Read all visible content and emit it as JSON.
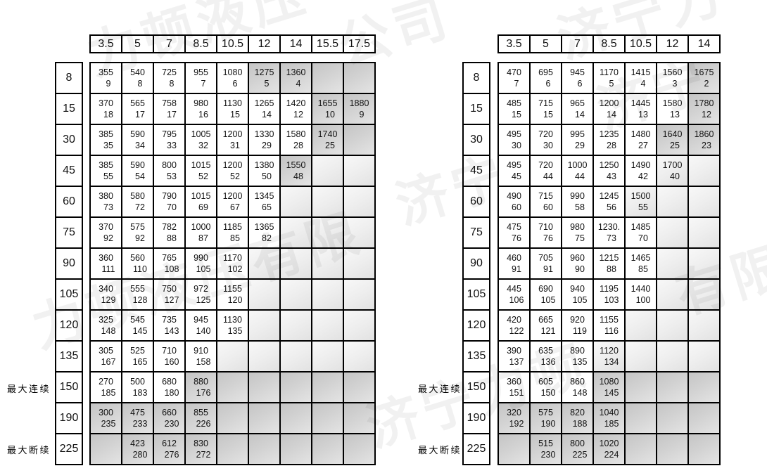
{
  "labels": {
    "max_continuous": "最大连续",
    "max_intermittent": "最大断续"
  },
  "watermark": {
    "text": "济宁力顿液压有限公司",
    "fragments": [
      "力顿液压",
      "公司",
      "济宁力",
      "力顿液压有限",
      "济宁力顿",
      "有限",
      "济宁",
      "济宁"
    ]
  },
  "left_table": {
    "columns": [
      "3.5",
      "5",
      "7",
      "8.5",
      "10.5",
      "12",
      "14",
      "15.5",
      "17.5"
    ],
    "rows": [
      {
        "h": "8",
        "c": [
          {
            "a": "355",
            "b": "9"
          },
          {
            "a": "540",
            "b": "8"
          },
          {
            "a": "725",
            "b": "8"
          },
          {
            "a": "955",
            "b": "7"
          },
          {
            "a": "1080",
            "b": "6"
          },
          {
            "a": "1275",
            "b": "5",
            "s": "d"
          },
          {
            "a": "1360",
            "b": "4",
            "s": "d"
          },
          {
            "s": "d"
          },
          {
            "s": "d"
          }
        ]
      },
      {
        "h": "15",
        "c": [
          {
            "a": "370",
            "b": "18"
          },
          {
            "a": "565",
            "b": "17"
          },
          {
            "a": "758",
            "b": "17"
          },
          {
            "a": "980",
            "b": "16"
          },
          {
            "a": "1130",
            "b": "15"
          },
          {
            "a": "1265",
            "b": "14"
          },
          {
            "a": "1420",
            "b": "12"
          },
          {
            "a": "1655",
            "b": "10",
            "s": "d"
          },
          {
            "a": "1880",
            "b": "9",
            "s": "d"
          }
        ]
      },
      {
        "h": "30",
        "c": [
          {
            "a": "385",
            "b": "35"
          },
          {
            "a": "590",
            "b": "34"
          },
          {
            "a": "795",
            "b": "33"
          },
          {
            "a": "1005",
            "b": "32"
          },
          {
            "a": "1200",
            "b": "31"
          },
          {
            "a": "1330",
            "b": "29"
          },
          {
            "a": "1580",
            "b": "28"
          },
          {
            "a": "1740",
            "b": "25",
            "s": "d"
          },
          {
            "s": "d"
          }
        ]
      },
      {
        "h": "45",
        "c": [
          {
            "a": "385",
            "b": "55"
          },
          {
            "a": "590",
            "b": "54"
          },
          {
            "a": "800",
            "b": "53"
          },
          {
            "a": "1015",
            "b": "52"
          },
          {
            "a": "1200",
            "b": "52"
          },
          {
            "a": "1380",
            "b": "50"
          },
          {
            "a": "1550",
            "b": "48",
            "s": "d"
          },
          {
            "s": "l"
          },
          {
            "s": "l"
          }
        ]
      },
      {
        "h": "60",
        "c": [
          {
            "a": "380",
            "b": "73"
          },
          {
            "a": "580",
            "b": "72"
          },
          {
            "a": "790",
            "b": "70"
          },
          {
            "a": "1015",
            "b": "69"
          },
          {
            "a": "1200",
            "b": "67"
          },
          {
            "a": "1345",
            "b": "65"
          },
          {
            "s": "l"
          },
          {
            "s": "l"
          },
          {
            "s": "l"
          }
        ]
      },
      {
        "h": "75",
        "c": [
          {
            "a": "370",
            "b": "92"
          },
          {
            "a": "575",
            "b": "92"
          },
          {
            "a": "782",
            "b": "88"
          },
          {
            "a": "1000",
            "b": "87"
          },
          {
            "a": "1185",
            "b": "85"
          },
          {
            "a": "1365",
            "b": "82"
          },
          {
            "s": "l"
          },
          {
            "s": "l"
          },
          {
            "s": "l"
          }
        ]
      },
      {
        "h": "90",
        "c": [
          {
            "a": "360",
            "b": "111"
          },
          {
            "a": "560",
            "b": "110"
          },
          {
            "a": "765",
            "b": "108"
          },
          {
            "a": "990",
            "b": "105"
          },
          {
            "a": "1170",
            "b": "102"
          },
          {
            "s": "l"
          },
          {
            "s": "l"
          },
          {
            "s": "l"
          },
          {
            "s": "l"
          }
        ]
      },
      {
        "h": "105",
        "c": [
          {
            "a": "340",
            "b": "129"
          },
          {
            "a": "555",
            "b": "128"
          },
          {
            "a": "750",
            "b": "127"
          },
          {
            "a": "972",
            "b": "125"
          },
          {
            "a": "1155",
            "b": "120"
          },
          {
            "s": "l"
          },
          {
            "s": "l"
          },
          {
            "s": "l"
          },
          {
            "s": "l"
          }
        ]
      },
      {
        "h": "120",
        "c": [
          {
            "a": "325",
            "b": "148"
          },
          {
            "a": "545",
            "b": "145"
          },
          {
            "a": "735",
            "b": "143"
          },
          {
            "a": "945",
            "b": "140"
          },
          {
            "a": "1130",
            "b": "135"
          },
          {
            "s": "l"
          },
          {
            "s": "l"
          },
          {
            "s": "l"
          },
          {
            "s": "l"
          }
        ]
      },
      {
        "h": "135",
        "c": [
          {
            "a": "305",
            "b": "167"
          },
          {
            "a": "525",
            "b": "165"
          },
          {
            "a": "710",
            "b": "160"
          },
          {
            "a": "910",
            "b": "158"
          },
          {
            "s": "l"
          },
          {
            "s": "l"
          },
          {
            "s": "l"
          },
          {
            "s": "l"
          },
          {
            "s": "l"
          }
        ]
      },
      {
        "h": "150",
        "c": [
          {
            "a": "270",
            "b": "185"
          },
          {
            "a": "500",
            "b": "183"
          },
          {
            "a": "680",
            "b": "180"
          },
          {
            "a": "880",
            "b": "176",
            "s": "d"
          },
          {
            "s": "d"
          },
          {
            "s": "d"
          },
          {
            "s": "d"
          },
          {
            "s": "d"
          },
          {
            "s": "d"
          }
        ]
      },
      {
        "h": "190",
        "c": [
          {
            "a": "300",
            "b": "235",
            "s": "d"
          },
          {
            "a": "475",
            "b": "233",
            "s": "d"
          },
          {
            "a": "660",
            "b": "230",
            "s": "d"
          },
          {
            "a": "855",
            "b": "226",
            "s": "d"
          },
          {
            "s": "d"
          },
          {
            "s": "d"
          },
          {
            "s": "d"
          },
          {
            "s": "d"
          },
          {
            "s": "d"
          }
        ]
      },
      {
        "h": "225",
        "c": [
          {
            "s": "d"
          },
          {
            "a": "423",
            "b": "280",
            "s": "d"
          },
          {
            "a": "612",
            "b": "276",
            "s": "d"
          },
          {
            "a": "830",
            "b": "272",
            "s": "d"
          },
          {
            "s": "d"
          },
          {
            "s": "d"
          },
          {
            "s": "d"
          },
          {
            "s": "d"
          },
          {
            "s": "d"
          }
        ]
      }
    ]
  },
  "right_table": {
    "columns": [
      "3.5",
      "5",
      "7",
      "8.5",
      "10.5",
      "12",
      "14"
    ],
    "rows": [
      {
        "h": "8",
        "c": [
          {
            "a": "470",
            "b": "7"
          },
          {
            "a": "695",
            "b": "6"
          },
          {
            "a": "945",
            "b": "6"
          },
          {
            "a": "1170",
            "b": "5"
          },
          {
            "a": "1415",
            "b": "4"
          },
          {
            "a": "1560",
            "b": "3"
          },
          {
            "a": "1675",
            "b": "2",
            "s": "d"
          }
        ]
      },
      {
        "h": "15",
        "c": [
          {
            "a": "485",
            "b": "15"
          },
          {
            "a": "715",
            "b": "15"
          },
          {
            "a": "965",
            "b": "14"
          },
          {
            "a": "1200",
            "b": "14"
          },
          {
            "a": "1445",
            "b": "13"
          },
          {
            "a": "1580",
            "b": "13"
          },
          {
            "a": "1780",
            "b": "12",
            "s": "d"
          }
        ]
      },
      {
        "h": "30",
        "c": [
          {
            "a": "495",
            "b": "30"
          },
          {
            "a": "720",
            "b": "30"
          },
          {
            "a": "995",
            "b": "29"
          },
          {
            "a": "1235",
            "b": "28"
          },
          {
            "a": "1480",
            "b": "27"
          },
          {
            "a": "1640",
            "b": "25",
            "s": "d"
          },
          {
            "a": "1860",
            "b": "23",
            "s": "d"
          }
        ]
      },
      {
        "h": "45",
        "c": [
          {
            "a": "495",
            "b": "45"
          },
          {
            "a": "720",
            "b": "44"
          },
          {
            "a": "1000",
            "b": "44"
          },
          {
            "a": "1250",
            "b": "43"
          },
          {
            "a": "1490",
            "b": "42"
          },
          {
            "a": "1700",
            "b": "40",
            "s": "l"
          },
          {
            "s": "l"
          }
        ]
      },
      {
        "h": "60",
        "c": [
          {
            "a": "490",
            "b": "60"
          },
          {
            "a": "715",
            "b": "60"
          },
          {
            "a": "990",
            "b": "58"
          },
          {
            "a": "1245",
            "b": "56"
          },
          {
            "a": "1500",
            "b": "55",
            "s": "l"
          },
          {
            "s": "l"
          },
          {
            "s": "l"
          }
        ]
      },
      {
        "h": "75",
        "c": [
          {
            "a": "475",
            "b": "76"
          },
          {
            "a": "710",
            "b": "76"
          },
          {
            "a": "980",
            "b": "75"
          },
          {
            "a": "1230.",
            "b": "73"
          },
          {
            "a": "1485",
            "b": "70"
          },
          {
            "s": "l"
          },
          {
            "s": "l"
          }
        ]
      },
      {
        "h": "90",
        "c": [
          {
            "a": "460",
            "b": "91"
          },
          {
            "a": "705",
            "b": "91"
          },
          {
            "a": "960",
            "b": "90"
          },
          {
            "a": "1215",
            "b": "88"
          },
          {
            "a": "1465",
            "b": "85"
          },
          {
            "s": "l"
          },
          {
            "s": "l"
          }
        ]
      },
      {
        "h": "105",
        "c": [
          {
            "a": "445",
            "b": "106"
          },
          {
            "a": "690",
            "b": "105"
          },
          {
            "a": "940",
            "b": "105"
          },
          {
            "a": "1195",
            "b": "103"
          },
          {
            "a": "1440",
            "b": "100"
          },
          {
            "s": "l"
          },
          {
            "s": "l"
          }
        ]
      },
      {
        "h": "120",
        "c": [
          {
            "a": "420",
            "b": "122"
          },
          {
            "a": "665",
            "b": "121"
          },
          {
            "a": "920",
            "b": "119"
          },
          {
            "a": "1155",
            "b": "116"
          },
          {
            "s": "l"
          },
          {
            "s": "l"
          },
          {
            "s": "l"
          }
        ]
      },
      {
        "h": "135",
        "c": [
          {
            "a": "390",
            "b": "137"
          },
          {
            "a": "635",
            "b": "136"
          },
          {
            "a": "890",
            "b": "135"
          },
          {
            "a": "1120",
            "b": "134",
            "s": "l"
          },
          {
            "s": "l"
          },
          {
            "s": "l"
          },
          {
            "s": "l"
          }
        ]
      },
      {
        "h": "150",
        "c": [
          {
            "a": "360",
            "b": "151"
          },
          {
            "a": "605",
            "b": "150"
          },
          {
            "a": "860",
            "b": "148"
          },
          {
            "a": "1080",
            "b": "145",
            "s": "d"
          },
          {
            "s": "d"
          },
          {
            "s": "d"
          },
          {
            "s": "d"
          }
        ]
      },
      {
        "h": "190",
        "c": [
          {
            "a": "320",
            "b": "192",
            "s": "d"
          },
          {
            "a": "575",
            "b": "190",
            "s": "d"
          },
          {
            "a": "820",
            "b": "188",
            "s": "d"
          },
          {
            "a": "1040",
            "b": "185",
            "s": "d"
          },
          {
            "s": "d"
          },
          {
            "s": "d"
          },
          {
            "s": "d"
          }
        ]
      },
      {
        "h": "225",
        "c": [
          {
            "s": "d"
          },
          {
            "a": "515",
            "b": "230",
            "s": "d"
          },
          {
            "a": "800",
            "b": "225",
            "s": "d"
          },
          {
            "a": "1020",
            "b": "224",
            "s": "d"
          },
          {
            "s": "d"
          },
          {
            "s": "d"
          },
          {
            "s": "d"
          }
        ]
      }
    ]
  }
}
